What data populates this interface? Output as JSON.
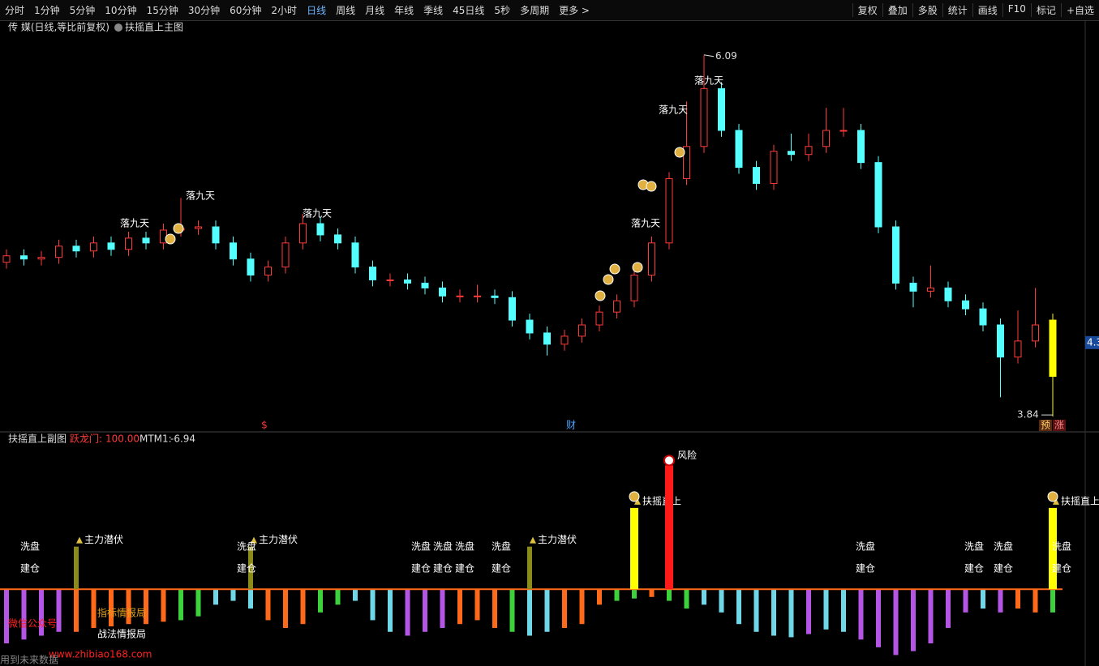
{
  "toolbar_left": [
    "分时",
    "1分钟",
    "5分钟",
    "10分钟",
    "15分钟",
    "30分钟",
    "60分钟",
    "2小时",
    "日线",
    "周线",
    "月线",
    "年线",
    "季线",
    "45日线",
    "5秒",
    "多周期",
    "更多 >"
  ],
  "toolbar_right": [
    "复权",
    "叠加",
    "多股",
    "统计",
    "画线",
    "F10",
    "标记",
    "+自选"
  ],
  "main_header": {
    "stock": "传 媒(日线,等比前复权)",
    "indicator": "扶摇直上主图"
  },
  "sub_header": {
    "title": "扶摇直上副图",
    "indicators": [
      {
        "name": "跃龙门:",
        "value": 100,
        "value_label": "100.00"
      },
      {
        "name": "MTM1:",
        "value": -6.94
      }
    ]
  },
  "event_markers": [
    "$",
    "财"
  ],
  "corner_markers": [
    "预",
    "涨"
  ],
  "watermark": [
    "微信公众号",
    "指标情报局",
    "战法情报局",
    "www.zhibiao168.com",
    "用到未来数据"
  ],
  "chart_data": [
    {
      "type": "candlestick",
      "open": [
        4.8,
        4.84,
        4.82,
        4.83,
        4.9,
        4.87,
        4.92,
        4.88,
        4.95,
        4.92,
        5.0,
        5.01,
        5.02,
        4.92,
        4.82,
        4.72,
        4.77,
        4.92,
        5.04,
        4.97,
        4.92,
        4.77,
        4.69,
        4.69,
        4.67,
        4.64,
        4.59,
        4.59,
        4.59,
        4.58,
        4.44,
        4.36,
        4.29,
        4.34,
        4.41,
        4.49,
        4.56,
        4.72,
        4.92,
        5.32,
        5.52,
        5.88,
        5.62,
        5.39,
        5.29,
        5.49,
        5.47,
        5.52,
        5.62,
        5.62,
        5.42,
        5.02,
        4.67,
        4.62,
        4.64,
        4.56,
        4.51,
        4.41,
        4.21,
        4.31,
        4.44
      ],
      "close": [
        4.84,
        4.82,
        4.83,
        4.9,
        4.87,
        4.92,
        4.88,
        4.95,
        4.92,
        5.0,
        5.01,
        5.02,
        4.92,
        4.82,
        4.72,
        4.77,
        4.92,
        5.04,
        4.97,
        4.92,
        4.77,
        4.69,
        4.69,
        4.67,
        4.64,
        4.59,
        4.59,
        4.59,
        4.58,
        4.44,
        4.36,
        4.29,
        4.34,
        4.41,
        4.49,
        4.56,
        4.72,
        4.92,
        5.32,
        5.52,
        5.88,
        5.62,
        5.39,
        5.29,
        5.49,
        5.47,
        5.52,
        5.62,
        5.62,
        5.42,
        5.02,
        4.67,
        4.62,
        4.64,
        4.56,
        4.51,
        4.41,
        4.21,
        4.31,
        4.41,
        4.09
      ],
      "high": [
        4.88,
        4.88,
        4.87,
        4.94,
        4.94,
        4.96,
        4.96,
        4.99,
        4.99,
        5.04,
        5.2,
        5.06,
        5.06,
        4.96,
        4.86,
        4.81,
        4.96,
        5.1,
        5.08,
        5.01,
        4.96,
        4.81,
        4.73,
        4.73,
        4.71,
        4.68,
        4.63,
        4.66,
        4.63,
        4.62,
        4.48,
        4.4,
        4.38,
        4.45,
        4.53,
        4.6,
        4.76,
        4.96,
        5.36,
        5.8,
        6.09,
        5.92,
        5.66,
        5.43,
        5.53,
        5.6,
        5.6,
        5.76,
        5.76,
        5.66,
        5.46,
        5.06,
        4.71,
        4.78,
        4.68,
        4.6,
        4.55,
        4.45,
        4.5,
        4.64,
        4.48
      ],
      "low": [
        4.76,
        4.78,
        4.78,
        4.79,
        4.83,
        4.83,
        4.84,
        4.84,
        4.88,
        4.88,
        4.96,
        4.97,
        4.88,
        4.78,
        4.68,
        4.68,
        4.73,
        4.88,
        4.93,
        4.88,
        4.73,
        4.65,
        4.65,
        4.63,
        4.6,
        4.55,
        4.55,
        4.55,
        4.54,
        4.4,
        4.32,
        4.22,
        4.25,
        4.3,
        4.37,
        4.45,
        4.52,
        4.68,
        4.88,
        5.28,
        5.48,
        5.58,
        5.35,
        5.25,
        5.25,
        5.43,
        5.43,
        5.48,
        5.58,
        5.38,
        4.98,
        4.63,
        4.52,
        4.58,
        4.52,
        4.47,
        4.37,
        3.96,
        4.17,
        4.27,
        3.84
      ],
      "up_color": "#ff3a3a",
      "down_color": "#54ffff",
      "last_color": "#ffff00",
      "annotations": [
        "落九天",
        "落九天",
        "落九天",
        "落九天",
        "落九天",
        "落九天"
      ],
      "ylim": [
        3.76,
        6.28
      ],
      "yticks": [
        4.3
      ]
    },
    {
      "type": "bar",
      "values": [
        -70,
        -65,
        -60,
        -55,
        -55,
        -50,
        -48,
        -45,
        -45,
        -42,
        -40,
        -35,
        -20,
        -15,
        -25,
        -40,
        -50,
        -45,
        -30,
        -20,
        -15,
        -40,
        -55,
        -60,
        -55,
        -50,
        -45,
        -40,
        -50,
        -55,
        -60,
        -55,
        -50,
        -45,
        -20,
        -15,
        -12,
        -10,
        -15,
        -25,
        -20,
        -30,
        -45,
        -55,
        -60,
        -62,
        -58,
        -52,
        -55,
        -65,
        -75,
        -85,
        -80,
        -70,
        -50,
        -30,
        -25,
        -30,
        -25,
        -30,
        -30
      ],
      "colors": [
        "#b455e6",
        "#b455e6",
        "#b455e6",
        "#b455e6",
        "#ff6a1a",
        "#ff6a1a",
        "#ff6a1a",
        "#ff6a1a",
        "#ff6a1a",
        "#ff6a1a",
        "#3cd23c",
        "#3cd23c",
        "#6fd8e8",
        "#6fd8e8",
        "#6fd8e8",
        "#ff6a1a",
        "#ff6a1a",
        "#ff6a1a",
        "#3cd23c",
        "#3cd23c",
        "#6fd8e8",
        "#6fd8e8",
        "#6fd8e8",
        "#b455e6",
        "#b455e6",
        "#b455e6",
        "#ff6a1a",
        "#ff6a1a",
        "#ff6a1a",
        "#3cd23c",
        "#6fd8e8",
        "#6fd8e8",
        "#ff6a1a",
        "#ff6a1a",
        "#ff6a1a",
        "#3cd23c",
        "#3cd23c",
        "#ff6a1a",
        "#3cd23c",
        "#3cd23c",
        "#6fd8e8",
        "#6fd8e8",
        "#6fd8e8",
        "#6fd8e8",
        "#6fd8e8",
        "#6fd8e8",
        "#b455e6",
        "#6fd8e8",
        "#6fd8e8",
        "#b455e6",
        "#b455e6",
        "#b455e6",
        "#b455e6",
        "#b455e6",
        "#b455e6",
        "#b455e6",
        "#6fd8e8",
        "#b455e6",
        "#ff6a1a",
        "#ff6a1a",
        "#3cd23c"
      ],
      "series": [
        {
          "name": "主力潜伏",
          "color": "#8b8b1a",
          "values": [
            null,
            null,
            null,
            null,
            55,
            null,
            null,
            null,
            null,
            null,
            null,
            null,
            null,
            null,
            55,
            null,
            null,
            null,
            null,
            null,
            null,
            null,
            null,
            null,
            null,
            null,
            null,
            null,
            null,
            null,
            55,
            null,
            null,
            null,
            null,
            null,
            null,
            null,
            null,
            null,
            null,
            null,
            null,
            null,
            null,
            null,
            null,
            null,
            null,
            null,
            null,
            null,
            null,
            null,
            null,
            null,
            null,
            null,
            null,
            null,
            null
          ]
        },
        {
          "name": "扶摇直上",
          "color": "#ffff00",
          "values": [
            null,
            null,
            null,
            null,
            null,
            null,
            null,
            null,
            null,
            null,
            null,
            null,
            null,
            null,
            null,
            null,
            null,
            null,
            null,
            null,
            null,
            null,
            null,
            null,
            null,
            null,
            null,
            null,
            null,
            null,
            null,
            null,
            null,
            null,
            null,
            null,
            105,
            null,
            null,
            null,
            null,
            null,
            null,
            null,
            null,
            null,
            null,
            null,
            null,
            null,
            null,
            null,
            null,
            null,
            null,
            null,
            null,
            null,
            null,
            null,
            105
          ]
        },
        {
          "name": "风险",
          "color": "#ff1a1a",
          "values": [
            null,
            null,
            null,
            null,
            null,
            null,
            null,
            null,
            null,
            null,
            null,
            null,
            null,
            null,
            null,
            null,
            null,
            null,
            null,
            null,
            null,
            null,
            null,
            null,
            null,
            null,
            null,
            null,
            null,
            null,
            null,
            null,
            null,
            null,
            null,
            null,
            null,
            null,
            160,
            null,
            null,
            null,
            null,
            null,
            null,
            null,
            null,
            null,
            null,
            null,
            null,
            null,
            null,
            null,
            null,
            null,
            null,
            null,
            null,
            null,
            null
          ]
        }
      ],
      "markers": [
        {
          "top": "洗盘",
          "bottom": "建仓"
        },
        {
          "top": "洗盘",
          "bottom": "建仓"
        },
        {
          "top": "洗盘",
          "bottom": "建仓"
        },
        {
          "top": "洗盘",
          "bottom": "建仓"
        },
        {
          "top": "洗盘",
          "bottom": "建仓"
        },
        {
          "top": "洗盘",
          "bottom": "建仓"
        },
        {
          "top": "洗盘",
          "bottom": "建仓"
        },
        {
          "top": "洗盘",
          "bottom": "建仓"
        },
        {
          "top": "洗盘",
          "bottom": "建仓"
        },
        {
          "top": "洗盘",
          "bottom": "建仓"
        }
      ],
      "ylim": [
        -95,
        175
      ]
    }
  ]
}
